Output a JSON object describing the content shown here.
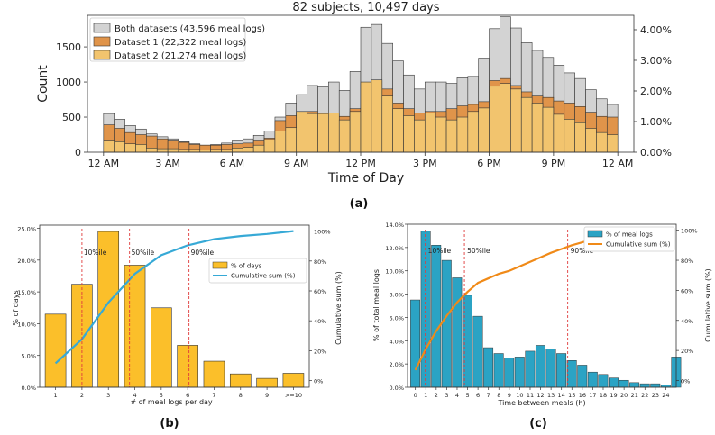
{
  "chart_data": [
    {
      "id": "a",
      "type": "bar",
      "panel_label": "(a)",
      "title": "82 subjects, 10,497 days",
      "xlabel": "Time of Day",
      "ylabel": "Count",
      "ylim": [
        0,
        1950
      ],
      "y2lim": [
        0,
        0.0447
      ],
      "yticks": [
        0,
        500,
        1000,
        1500
      ],
      "y2ticks": [
        0,
        0.01,
        0.02,
        0.03,
        0.04
      ],
      "y2tick_labels": [
        "0.00%",
        "1.00%",
        "2.00%",
        "3.00%",
        "4.00%"
      ],
      "xticks": [
        0,
        3,
        6,
        9,
        12,
        15,
        18,
        21,
        24
      ],
      "xtick_labels": [
        "12 AM",
        "3 AM",
        "6 AM",
        "9 AM",
        "12 PM",
        "3 PM",
        "6 PM",
        "9 PM",
        "12 AM"
      ],
      "legend_position": "top-left",
      "bin_hours": 0.5,
      "series": [
        {
          "name": "Both datasets (43,596 meal logs)",
          "color": "#d3d3d3",
          "values": [
            550,
            470,
            380,
            330,
            260,
            220,
            190,
            150,
            120,
            100,
            110,
            130,
            160,
            190,
            240,
            300,
            500,
            700,
            820,
            950,
            930,
            1000,
            880,
            1150,
            1780,
            1820,
            1550,
            1300,
            1100,
            900,
            1000,
            1000,
            980,
            1060,
            1080,
            1340,
            1760,
            1930,
            1770,
            1560,
            1450,
            1350,
            1240,
            1130,
            1050,
            890,
            760,
            680
          ]
        },
        {
          "name": "Dataset 1 (22,322 meal logs)",
          "color": "#e0944a",
          "values": [
            390,
            340,
            280,
            250,
            230,
            190,
            160,
            140,
            110,
            100,
            100,
            110,
            120,
            130,
            160,
            200,
            450,
            520,
            560,
            580,
            560,
            540,
            510,
            620,
            980,
            1020,
            900,
            700,
            620,
            560,
            580,
            580,
            620,
            660,
            680,
            720,
            1020,
            1050,
            950,
            860,
            800,
            780,
            730,
            700,
            650,
            570,
            510,
            500
          ]
        },
        {
          "name": "Dataset 2 (21,274 meal logs)",
          "color": "#f2c46e",
          "values": [
            160,
            150,
            120,
            110,
            60,
            50,
            50,
            40,
            40,
            30,
            40,
            40,
            60,
            70,
            100,
            180,
            300,
            350,
            580,
            550,
            550,
            560,
            460,
            580,
            1000,
            1030,
            800,
            620,
            520,
            460,
            560,
            500,
            460,
            500,
            580,
            630,
            940,
            980,
            900,
            780,
            700,
            640,
            540,
            470,
            420,
            340,
            280,
            250
          ]
        }
      ]
    },
    {
      "id": "b",
      "type": "bar",
      "panel_label": "(b)",
      "xlabel": "# of meal logs per day",
      "ylabel": "% of days",
      "y2label": "Cumulative sum (%)",
      "categories": [
        "1",
        "2",
        "3",
        "4",
        "5",
        "6",
        "7",
        "8",
        "9",
        ">=10"
      ],
      "ylim": [
        0,
        25.5
      ],
      "yticks": [
        0,
        5,
        10,
        15,
        20,
        25
      ],
      "ytick_labels": [
        "0.0%",
        "5.0%",
        "10.0%",
        "15.0%",
        "20.0%",
        "25.0%"
      ],
      "y2lim": [
        -4.5,
        104
      ],
      "y2ticks": [
        0,
        20,
        40,
        60,
        80,
        100
      ],
      "y2tick_labels": [
        "0%",
        "20%",
        "40%",
        "60%",
        "80%",
        "100%"
      ],
      "legend_position": "center-right",
      "series": [
        {
          "name": "% of days",
          "kind": "bar",
          "color": "#fbbf2a",
          "values": [
            11.5,
            16.2,
            24.5,
            19.2,
            12.5,
            6.6,
            4.1,
            2.1,
            1.4,
            2.2
          ]
        },
        {
          "name": "Cumulative sum (%)",
          "kind": "line",
          "color": "#36a9d6",
          "values": [
            11.5,
            27.7,
            52.2,
            71.4,
            83.9,
            90.5,
            94.6,
            96.7,
            98.1,
            100
          ]
        }
      ],
      "percentile_lines": [
        {
          "label": "10%ile",
          "x": 2.0
        },
        {
          "label": "50%ile",
          "x": 3.8
        },
        {
          "label": "90%ile",
          "x": 6.05
        }
      ]
    },
    {
      "id": "c",
      "type": "bar",
      "panel_label": "(c)",
      "xlabel": "Time between meals (h)",
      "ylabel": "% of total meal logs",
      "y2label": "Cumulative sum (%)",
      "xtick_labels": [
        "0",
        "1",
        "2",
        "3",
        "4",
        "5",
        "6",
        "7",
        "8",
        "9",
        "10",
        "11",
        "12",
        "13",
        "14",
        "15",
        "16",
        "17",
        "18",
        "19",
        "20",
        "21",
        "22",
        "23",
        "24"
      ],
      "ylim": [
        0,
        14
      ],
      "yticks": [
        0,
        2,
        4,
        6,
        8,
        10,
        12,
        14
      ],
      "ytick_labels": [
        "0.0%",
        "2.0%",
        "4.0%",
        "6.0%",
        "8.0%",
        "10.0%",
        "12.0%",
        "14.0%"
      ],
      "y2lim": [
        -4.5,
        104
      ],
      "y2ticks": [
        0,
        20,
        40,
        60,
        80,
        100
      ],
      "y2tick_labels": [
        "0%",
        "20%",
        "40%",
        "60%",
        "80%",
        "100%"
      ],
      "legend_position": "top-right",
      "series": [
        {
          "name": "% of meal logs",
          "kind": "bar",
          "color": "#2ba3c4",
          "values": [
            7.5,
            13.4,
            12.2,
            10.9,
            9.4,
            7.9,
            6.1,
            3.4,
            2.9,
            2.5,
            2.6,
            3.1,
            3.6,
            3.3,
            2.9,
            2.3,
            1.9,
            1.3,
            1.1,
            0.8,
            0.6,
            0.4,
            0.3,
            0.3,
            0.2,
            2.6
          ]
        },
        {
          "name": "Cumulative sum (%)",
          "kind": "line",
          "color": "#f08a18",
          "x": [
            0,
            1,
            2,
            3,
            4,
            5,
            6,
            7,
            8,
            9,
            10,
            11,
            12,
            13,
            14,
            15,
            16,
            17,
            18,
            19,
            20,
            21,
            22,
            23,
            24,
            24.5
          ],
          "values": [
            7,
            21,
            33,
            43,
            52,
            59,
            65,
            68,
            71,
            73,
            76,
            79,
            82,
            85,
            87.5,
            90,
            92,
            94,
            95,
            96,
            96.5,
            97,
            97.2,
            97.3,
            97.4,
            100
          ]
        }
      ],
      "percentile_lines": [
        {
          "label": "10%ile",
          "x": 0.95
        },
        {
          "label": "50%ile",
          "x": 4.7
        },
        {
          "label": "90%ile",
          "x": 14.6
        }
      ]
    }
  ]
}
